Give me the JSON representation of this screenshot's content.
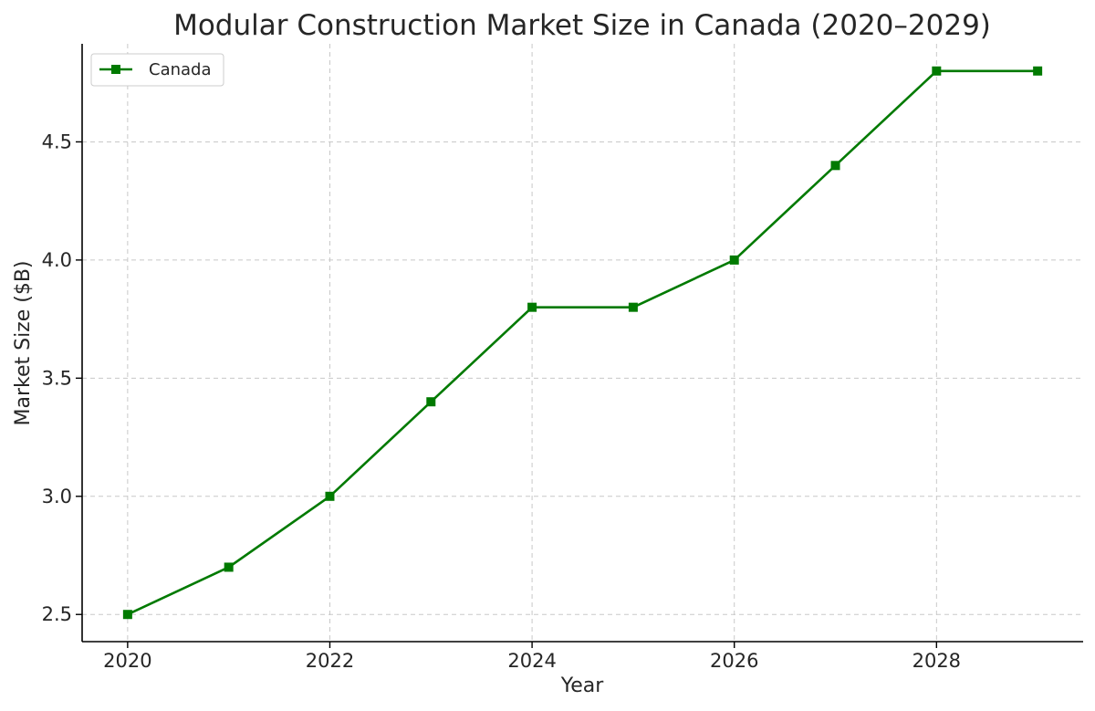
{
  "chart_data": {
    "type": "line",
    "title": "Modular Construction Market Size in Canada (2020–2029)",
    "xlabel": "Year",
    "ylabel": "Market Size ($B)",
    "x": [
      2020,
      2021,
      2022,
      2023,
      2024,
      2025,
      2026,
      2027,
      2028,
      2029
    ],
    "series": [
      {
        "name": "Canada",
        "values": [
          2.5,
          2.7,
          3.0,
          3.4,
          3.8,
          3.8,
          4.0,
          4.4,
          4.8,
          4.8
        ],
        "color": "#007a00",
        "marker": "square"
      }
    ],
    "xlim": [
      2019.55,
      2029.45
    ],
    "ylim": [
      2.385,
      4.915
    ],
    "x_ticks": [
      "2020",
      "2022",
      "2024",
      "2026",
      "2028"
    ],
    "y_ticks": [
      "2.5",
      "3.0",
      "3.5",
      "4.0",
      "4.5"
    ],
    "grid": true,
    "legend_position": "top-left"
  }
}
